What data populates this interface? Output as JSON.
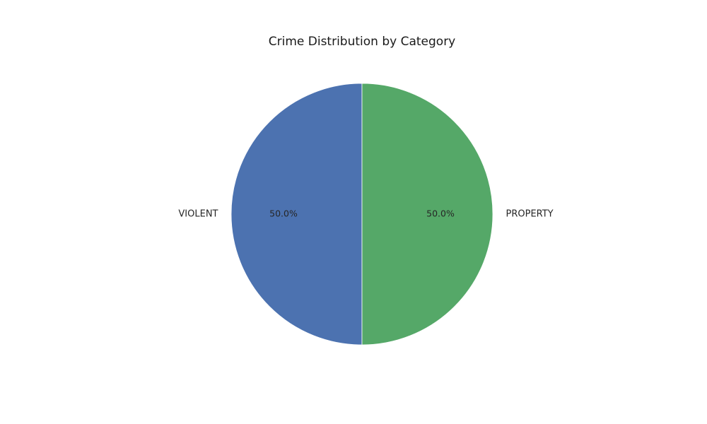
{
  "chart_data": {
    "type": "pie",
    "title": "Crime Distribution by Category",
    "labels": [
      "VIOLENT",
      "PROPERTY"
    ],
    "values": [
      50,
      50
    ],
    "percent_labels": [
      "50.0%",
      "50.0%"
    ],
    "colors": [
      "#4c72b0",
      "#55a868"
    ],
    "start_angle_deg": 90,
    "direction": "counterclockwise",
    "legend": "none"
  }
}
